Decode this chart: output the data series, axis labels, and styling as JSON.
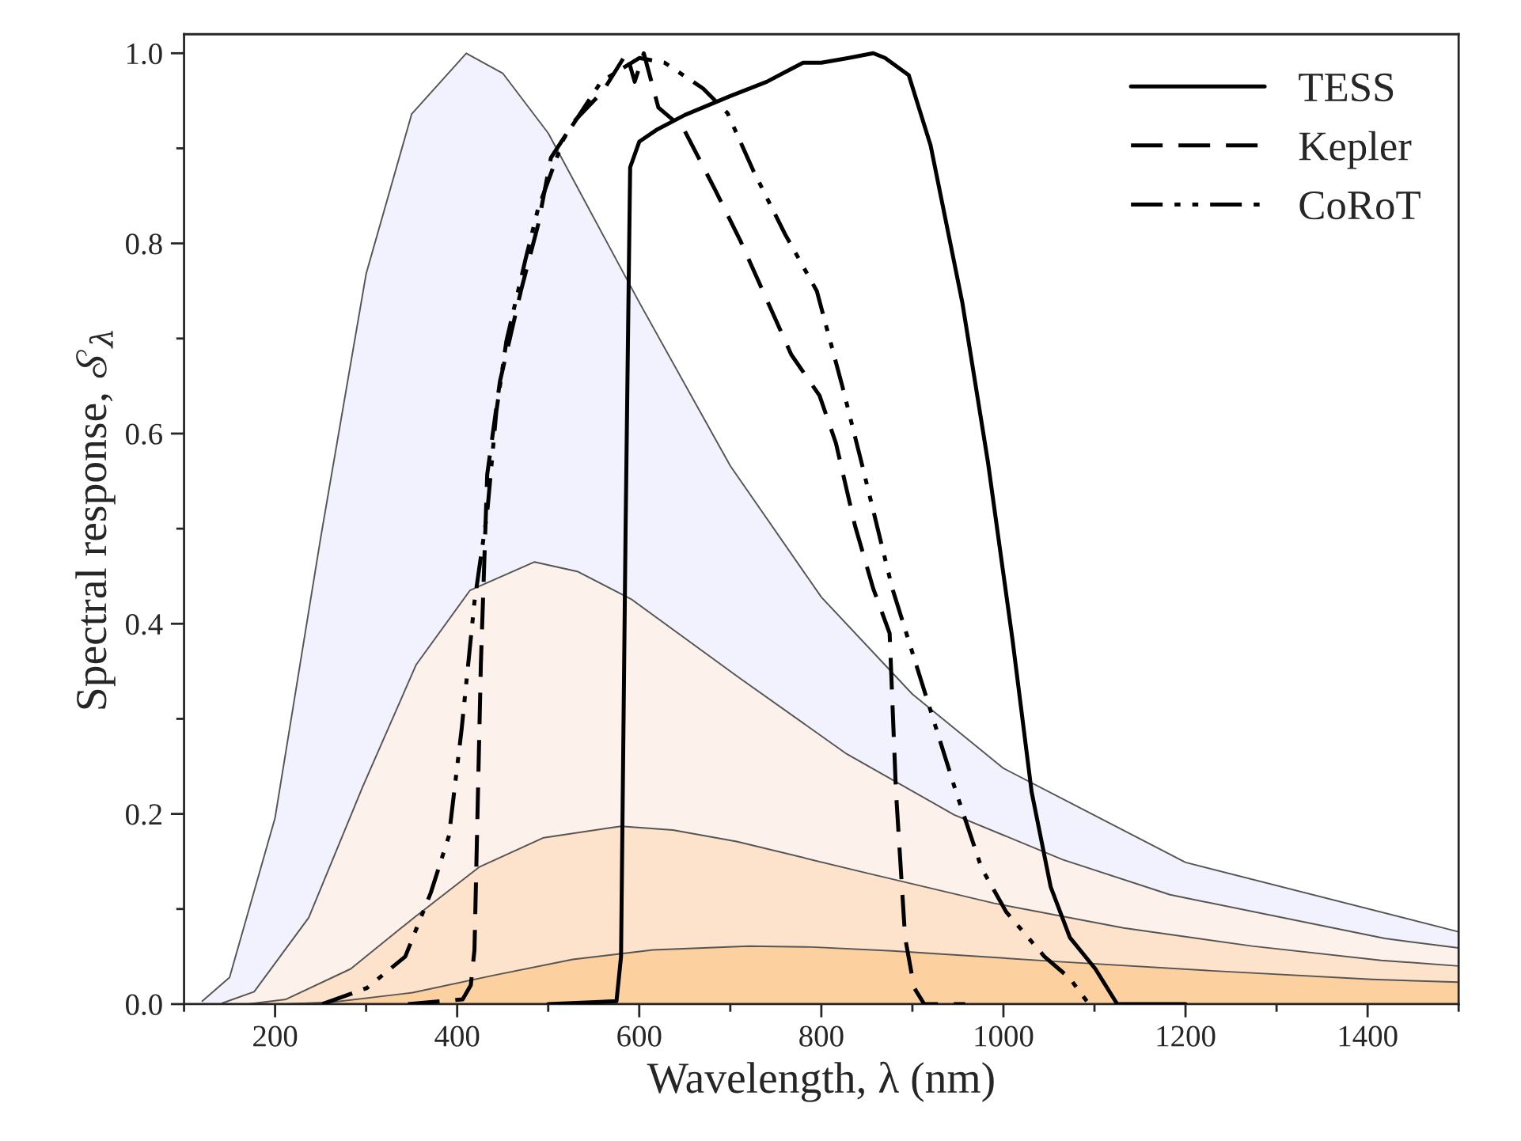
{
  "chart_data": {
    "type": "line",
    "xlabel": "Wavelength, λ (nm)",
    "ylabel": "Spectral response, 𝒮$_{λ}$",
    "xlim": [
      100,
      1500
    ],
    "xticks": [
      200,
      400,
      600,
      800,
      1000,
      1200,
      1400
    ],
    "ylim": [
      0,
      1.02
    ],
    "yticks": [
      {
        "value": 0,
        "label": "0.0"
      },
      0.2,
      0.4,
      0.6,
      0.8,
      {
        "value": 1,
        "label": "1.0"
      }
    ],
    "legend": "top right",
    "series": [
      {
        "type": "area",
        "color": "#f2f2fe",
        "x": [
          120,
          150,
          200,
          250,
          300,
          350,
          410,
          450,
          500,
          600,
          700,
          800,
          900,
          1000,
          1200,
          1500
        ],
        "values": [
          0.003,
          0.028,
          0.196,
          0.49,
          0.768,
          0.936,
          1.0,
          0.979,
          0.916,
          0.738,
          0.566,
          0.428,
          0.326,
          0.248,
          0.149,
          0.076
        ]
      },
      {
        "type": "area",
        "color": "#fdf1ec",
        "x": [
          142,
          177,
          237,
          296,
          355,
          414,
          485,
          532,
          591,
          710,
          828,
          946,
          1065,
          1183,
          1419,
          1500
        ],
        "values": [
          0.001,
          0.013,
          0.091,
          0.228,
          0.357,
          0.435,
          0.465,
          0.455,
          0.426,
          0.343,
          0.263,
          0.199,
          0.152,
          0.115,
          0.069,
          0.059
        ]
      },
      {
        "type": "area",
        "color": "#fde3cc",
        "x": [
          170,
          212,
          283,
          354,
          424,
          495,
          580,
          637,
          707,
          849,
          990,
          1132,
          1273,
          1415,
          1500
        ],
        "values": [
          0.0,
          0.005,
          0.037,
          0.092,
          0.144,
          0.175,
          0.187,
          0.183,
          0.171,
          0.138,
          0.106,
          0.08,
          0.061,
          0.046,
          0.04
        ]
      },
      {
        "type": "area",
        "color": "#fdd0a0",
        "x": [
          211,
          263,
          351,
          439,
          527,
          615,
          720,
          790,
          878,
          1054,
          1229,
          1405,
          1500
        ],
        "values": [
          0.0,
          0.002,
          0.012,
          0.03,
          0.047,
          0.057,
          0.061,
          0.06,
          0.056,
          0.045,
          0.035,
          0.026,
          0.023
        ]
      },
      {
        "name": "TESS",
        "color": "#000000",
        "line_style": "solid",
        "x": [
          500,
          575,
          580,
          585,
          590,
          600,
          620,
          650,
          700,
          740,
          760,
          780,
          800,
          830,
          857,
          870,
          896,
          920,
          955,
          983,
          1010,
          1031,
          1052,
          1073,
          1101,
          1125,
          1200
        ],
        "values": [
          0.0,
          0.003,
          0.05,
          0.5,
          0.88,
          0.907,
          0.92,
          0.935,
          0.955,
          0.97,
          0.98,
          0.99,
          0.99,
          0.995,
          1.0,
          0.995,
          0.977,
          0.903,
          0.737,
          0.57,
          0.383,
          0.223,
          0.123,
          0.07,
          0.037,
          0.0,
          0.0
        ]
      },
      {
        "name": "Kepler",
        "color": "#000000",
        "line_style": "dashed",
        "x": [
          346,
          406,
          415,
          419,
          426,
          433,
          447,
          470,
          489,
          503,
          530,
          560,
          586,
          595,
          605,
          621,
          649,
          683,
          711,
          739,
          767,
          798,
          816,
          837,
          857,
          875,
          882,
          892,
          902,
          913,
          958
        ],
        "values": [
          0.0,
          0.005,
          0.02,
          0.057,
          0.357,
          0.557,
          0.655,
          0.75,
          0.82,
          0.89,
          0.93,
          0.96,
          1.0,
          0.97,
          1.0,
          0.943,
          0.92,
          0.857,
          0.803,
          0.743,
          0.683,
          0.64,
          0.59,
          0.503,
          0.437,
          0.39,
          0.223,
          0.07,
          0.017,
          0.0,
          0.0
        ]
      },
      {
        "name": "CoRoT",
        "color": "#000000",
        "line_style": "dashdot",
        "x": [
          252,
          301,
          343,
          371,
          391,
          405,
          419,
          433,
          443,
          454,
          475,
          489,
          517,
          558,
          600,
          628,
          670,
          697,
          725,
          760,
          795,
          823,
          844,
          878,
          913,
          948,
          976,
          1003,
          1045,
          1073,
          1094
        ],
        "values": [
          0.0,
          0.017,
          0.05,
          0.117,
          0.177,
          0.29,
          0.423,
          0.517,
          0.623,
          0.697,
          0.783,
          0.837,
          0.91,
          0.97,
          0.995,
          0.99,
          0.963,
          0.937,
          0.877,
          0.81,
          0.75,
          0.65,
          0.57,
          0.437,
          0.33,
          0.223,
          0.143,
          0.097,
          0.05,
          0.027,
          0.0
        ]
      }
    ]
  }
}
